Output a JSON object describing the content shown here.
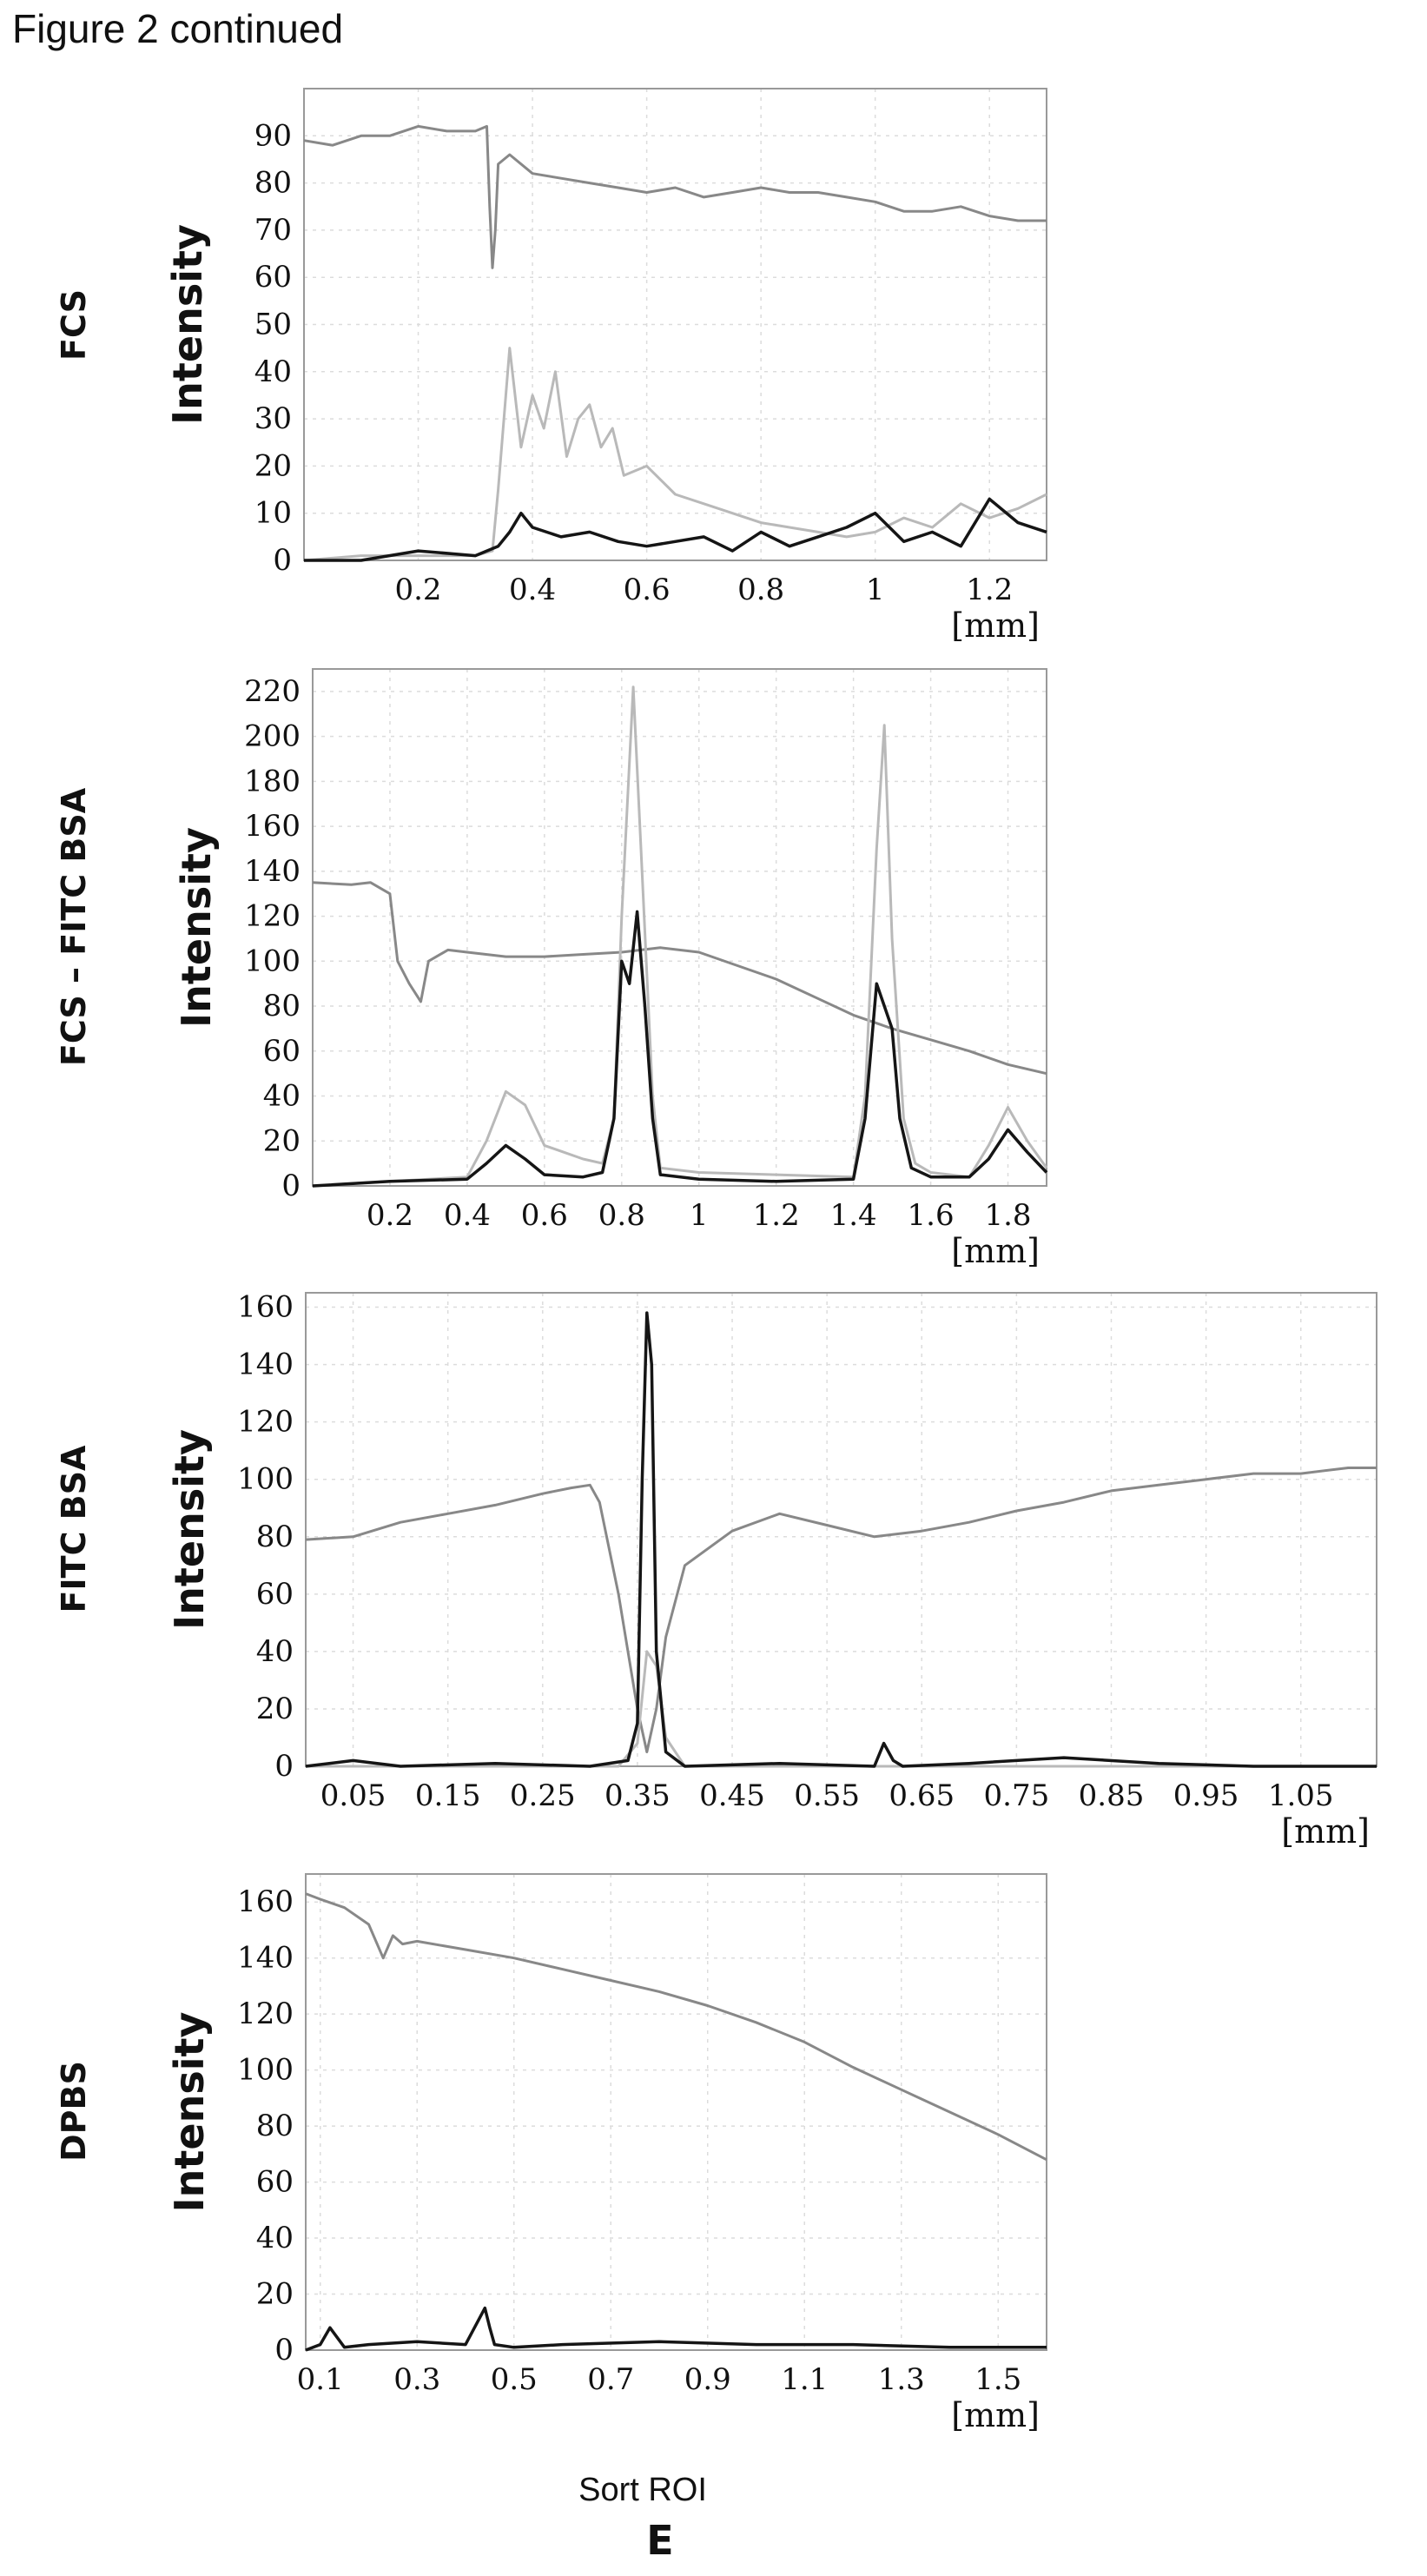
{
  "page_title": "Figure 2 continued",
  "xlabel": "Sort ROI",
  "panel_label": "E",
  "colors": {
    "dark": "#151515",
    "mid": "#888888",
    "light": "#b9b9b9",
    "grid": "#dcdcdc",
    "frame": "#999999"
  },
  "chart_data": [
    {
      "type": "line",
      "side_label": "FCS",
      "ylabel": "Intensity",
      "x_unit": "[mm]",
      "xlim": [
        0.0,
        1.3
      ],
      "ylim": [
        0,
        100
      ],
      "xticks": [
        0.2,
        0.4,
        0.6,
        0.8,
        1,
        1.2
      ],
      "yticks": [
        0,
        10,
        20,
        30,
        40,
        50,
        60,
        70,
        80,
        90
      ],
      "series": [
        {
          "color": "mid",
          "x": [
            0.0,
            0.05,
            0.1,
            0.15,
            0.2,
            0.25,
            0.3,
            0.32,
            0.325,
            0.33,
            0.335,
            0.34,
            0.36,
            0.4,
            0.45,
            0.5,
            0.55,
            0.6,
            0.65,
            0.7,
            0.75,
            0.8,
            0.85,
            0.9,
            0.95,
            1.0,
            1.05,
            1.1,
            1.15,
            1.2,
            1.25,
            1.3
          ],
          "y": [
            89,
            88,
            90,
            90,
            92,
            91,
            91,
            92,
            75,
            62,
            70,
            84,
            86,
            82,
            81,
            80,
            79,
            78,
            79,
            77,
            78,
            79,
            78,
            78,
            77,
            76,
            74,
            74,
            75,
            73,
            72,
            72
          ]
        },
        {
          "color": "light",
          "x": [
            0.0,
            0.1,
            0.2,
            0.3,
            0.33,
            0.34,
            0.36,
            0.38,
            0.4,
            0.42,
            0.44,
            0.46,
            0.48,
            0.5,
            0.52,
            0.54,
            0.56,
            0.6,
            0.65,
            0.7,
            0.75,
            0.8,
            0.85,
            0.9,
            0.95,
            1.0,
            1.05,
            1.1,
            1.15,
            1.2,
            1.25,
            1.3
          ],
          "y": [
            0,
            1,
            1,
            1,
            2,
            15,
            45,
            24,
            35,
            28,
            40,
            22,
            30,
            33,
            24,
            28,
            18,
            20,
            14,
            12,
            10,
            8,
            7,
            6,
            5,
            6,
            9,
            7,
            12,
            9,
            11,
            14
          ]
        },
        {
          "color": "dark",
          "x": [
            0.0,
            0.1,
            0.2,
            0.3,
            0.34,
            0.36,
            0.38,
            0.4,
            0.45,
            0.5,
            0.55,
            0.6,
            0.65,
            0.7,
            0.75,
            0.8,
            0.85,
            0.9,
            0.95,
            1.0,
            1.05,
            1.1,
            1.15,
            1.2,
            1.25,
            1.3
          ],
          "y": [
            0,
            0,
            2,
            1,
            3,
            6,
            10,
            7,
            5,
            6,
            4,
            3,
            4,
            5,
            2,
            6,
            3,
            5,
            7,
            10,
            4,
            6,
            3,
            13,
            8,
            6
          ]
        }
      ]
    },
    {
      "type": "line",
      "side_label": "FCS – FITC BSA",
      "ylabel": "Intensity",
      "x_unit": "[mm]",
      "xlim": [
        0.0,
        1.9
      ],
      "ylim": [
        0,
        230
      ],
      "xticks": [
        0.2,
        0.4,
        0.6,
        0.8,
        1,
        1.2,
        1.4,
        1.6,
        1.8
      ],
      "yticks": [
        0,
        20,
        40,
        60,
        80,
        100,
        120,
        140,
        160,
        180,
        200,
        220
      ],
      "series": [
        {
          "color": "mid",
          "x": [
            0.0,
            0.1,
            0.15,
            0.2,
            0.22,
            0.25,
            0.28,
            0.3,
            0.35,
            0.4,
            0.5,
            0.6,
            0.7,
            0.8,
            0.9,
            1.0,
            1.1,
            1.2,
            1.3,
            1.4,
            1.5,
            1.6,
            1.7,
            1.8,
            1.9
          ],
          "y": [
            135,
            134,
            135,
            130,
            100,
            90,
            82,
            100,
            105,
            104,
            102,
            102,
            103,
            104,
            106,
            104,
            98,
            92,
            84,
            76,
            70,
            65,
            60,
            54,
            50
          ]
        },
        {
          "color": "light",
          "x": [
            0.0,
            0.2,
            0.4,
            0.45,
            0.5,
            0.55,
            0.6,
            0.65,
            0.7,
            0.75,
            0.78,
            0.8,
            0.83,
            0.85,
            0.88,
            0.9,
            1.0,
            1.2,
            1.4,
            1.43,
            1.46,
            1.48,
            1.5,
            1.53,
            1.56,
            1.6,
            1.7,
            1.75,
            1.8,
            1.85,
            1.9
          ],
          "y": [
            0,
            2,
            4,
            20,
            42,
            36,
            18,
            15,
            12,
            10,
            30,
            120,
            222,
            150,
            40,
            8,
            6,
            5,
            4,
            40,
            150,
            205,
            110,
            30,
            10,
            6,
            4,
            18,
            35,
            20,
            8
          ]
        },
        {
          "color": "dark",
          "x": [
            0.0,
            0.2,
            0.4,
            0.45,
            0.5,
            0.55,
            0.6,
            0.7,
            0.75,
            0.78,
            0.8,
            0.82,
            0.84,
            0.86,
            0.88,
            0.9,
            1.0,
            1.2,
            1.4,
            1.43,
            1.46,
            1.48,
            1.5,
            1.52,
            1.55,
            1.6,
            1.7,
            1.75,
            1.8,
            1.85,
            1.9
          ],
          "y": [
            0,
            2,
            3,
            10,
            18,
            12,
            5,
            4,
            6,
            30,
            100,
            90,
            122,
            80,
            30,
            5,
            3,
            2,
            3,
            30,
            90,
            80,
            70,
            30,
            8,
            4,
            4,
            12,
            25,
            15,
            6
          ]
        }
      ]
    },
    {
      "type": "line",
      "side_label": "FITC BSA",
      "ylabel": "Intensity",
      "x_unit": "[mm]",
      "xlim": [
        0.0,
        1.13
      ],
      "ylim": [
        0,
        165
      ],
      "xticks": [
        0.05,
        0.15,
        0.25,
        0.35,
        0.45,
        0.55,
        0.65,
        0.75,
        0.85,
        0.95,
        1.05
      ],
      "yticks": [
        0,
        20,
        40,
        60,
        80,
        100,
        120,
        140,
        160
      ],
      "series": [
        {
          "color": "mid",
          "x": [
            0.0,
            0.05,
            0.1,
            0.15,
            0.2,
            0.25,
            0.28,
            0.3,
            0.31,
            0.33,
            0.35,
            0.36,
            0.37,
            0.38,
            0.4,
            0.45,
            0.5,
            0.55,
            0.6,
            0.65,
            0.7,
            0.75,
            0.8,
            0.85,
            0.9,
            0.95,
            1.0,
            1.05,
            1.1,
            1.13
          ],
          "y": [
            79,
            80,
            85,
            88,
            91,
            95,
            97,
            98,
            92,
            60,
            20,
            5,
            20,
            45,
            70,
            82,
            88,
            84,
            80,
            82,
            85,
            89,
            92,
            96,
            98,
            100,
            102,
            102,
            104,
            104
          ]
        },
        {
          "color": "light",
          "x": [
            0.0,
            0.33,
            0.35,
            0.36,
            0.37,
            0.38,
            0.4,
            1.13
          ],
          "y": [
            0,
            0,
            8,
            40,
            35,
            10,
            0,
            0
          ]
        },
        {
          "color": "dark",
          "x": [
            0.0,
            0.05,
            0.1,
            0.2,
            0.3,
            0.34,
            0.35,
            0.355,
            0.36,
            0.365,
            0.37,
            0.38,
            0.4,
            0.5,
            0.6,
            0.61,
            0.62,
            0.63,
            0.7,
            0.8,
            0.9,
            1.0,
            1.13
          ],
          "y": [
            0,
            2,
            0,
            1,
            0,
            2,
            15,
            100,
            158,
            140,
            40,
            5,
            0,
            1,
            0,
            8,
            2,
            0,
            1,
            3,
            1,
            0,
            0
          ]
        }
      ]
    },
    {
      "type": "line",
      "side_label": "DPBS",
      "ylabel": "Intensity",
      "x_unit": "[mm]",
      "xlim": [
        0.07,
        1.6
      ],
      "ylim": [
        0,
        170
      ],
      "xticks": [
        0.1,
        0.3,
        0.5,
        0.7,
        0.9,
        1.1,
        1.3,
        1.5
      ],
      "yticks": [
        0,
        20,
        40,
        60,
        80,
        100,
        120,
        140,
        160
      ],
      "series": [
        {
          "color": "mid",
          "x": [
            0.07,
            0.1,
            0.15,
            0.2,
            0.23,
            0.25,
            0.27,
            0.3,
            0.4,
            0.5,
            0.6,
            0.7,
            0.8,
            0.9,
            1.0,
            1.1,
            1.2,
            1.3,
            1.4,
            1.5,
            1.6
          ],
          "y": [
            163,
            161,
            158,
            152,
            140,
            148,
            145,
            146,
            143,
            140,
            136,
            132,
            128,
            123,
            117,
            110,
            101,
            93,
            85,
            77,
            68
          ]
        },
        {
          "color": "dark",
          "x": [
            0.07,
            0.1,
            0.12,
            0.15,
            0.2,
            0.3,
            0.4,
            0.44,
            0.45,
            0.46,
            0.5,
            0.6,
            0.8,
            1.0,
            1.2,
            1.4,
            1.6
          ],
          "y": [
            0,
            2,
            8,
            1,
            2,
            3,
            2,
            15,
            8,
            2,
            1,
            2,
            3,
            2,
            2,
            1,
            1
          ]
        }
      ]
    }
  ]
}
